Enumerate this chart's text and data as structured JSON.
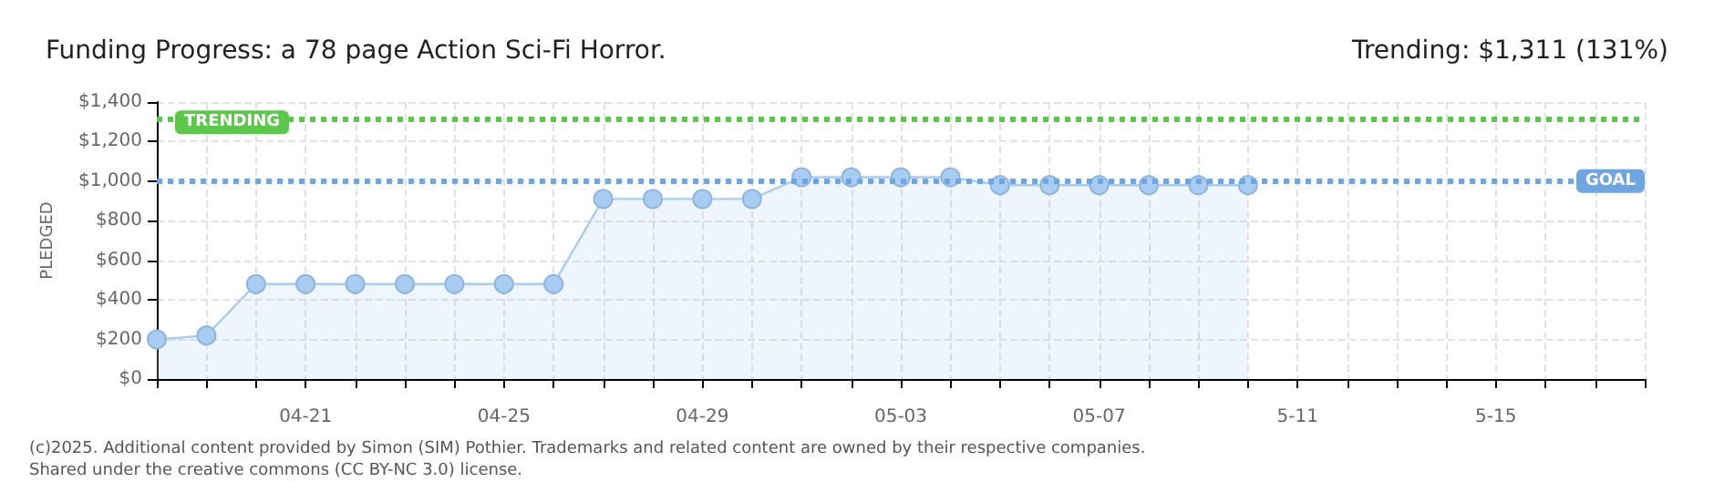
{
  "chart_data": {
    "type": "area",
    "title": "Funding Progress: a 78 page Action Sci-Fi Horror.",
    "subtitle": "Trending: $1,311 (131%)",
    "ylabel": "PLEDGED",
    "categories": [
      null,
      null,
      null,
      "04-21",
      null,
      null,
      null,
      "04-25",
      null,
      null,
      null,
      "04-29",
      null,
      null,
      null,
      "05-03",
      null,
      null,
      null,
      "05-07",
      null,
      null,
      null,
      "5-11",
      null,
      null,
      null,
      "5-15",
      null,
      null,
      null
    ],
    "series": [
      {
        "color": "#a9cdf2",
        "values": [
          200,
          220,
          480,
          480,
          480,
          480,
          480,
          480,
          480,
          910,
          910,
          910,
          910,
          1020,
          1020,
          1020,
          1020,
          980,
          980,
          980,
          980,
          980,
          980,
          null,
          null,
          null,
          null,
          null,
          null,
          null,
          null
        ]
      }
    ],
    "ylim": [
      0,
      1400
    ],
    "yticks": [
      {
        "value": 0,
        "label": "$0"
      },
      {
        "value": 200,
        "label": "$200"
      },
      {
        "value": 400,
        "label": "$400"
      },
      {
        "value": 600,
        "label": "$600"
      },
      {
        "value": 800,
        "label": "$800"
      },
      {
        "value": 1000,
        "label": "$1,000"
      },
      {
        "value": 1200,
        "label": "$1,200"
      },
      {
        "value": 1400,
        "label": "$1,400"
      }
    ],
    "grid": true,
    "marker": "circle",
    "ref_lines": [
      {
        "axis": "y",
        "value": 1311,
        "label": "TRENDING",
        "color": "#5cc84a",
        "line_style": "dotted"
      },
      {
        "axis": "y",
        "value": 1000,
        "label": "GOAL",
        "color": "#6fa6e0",
        "line_style": "dotted"
      }
    ],
    "annotations": [
      "(c)2025. Additional content provided by Simon (SIM) Pothier. Trademarks and related content are owned by their respective companies.",
      "Shared under the creative commons (CC BY-NC 3.0) license."
    ]
  }
}
